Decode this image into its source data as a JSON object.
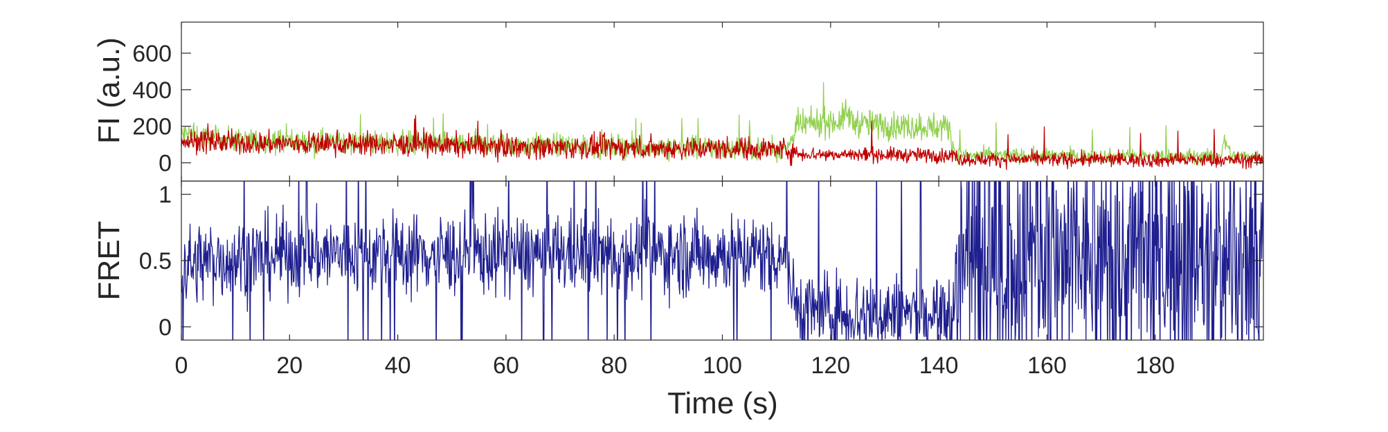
{
  "chart_data": [
    {
      "type": "line",
      "panel": "top",
      "ylabel": "FI (a.u.)",
      "xlim": [
        0,
        200
      ],
      "ylim": [
        -100,
        770
      ],
      "yticks": [
        0,
        200,
        400,
        600
      ],
      "grid": false,
      "series": [
        {
          "color": "#92D050",
          "x": [
            0,
            2,
            4,
            6,
            8,
            10,
            14,
            18,
            22,
            26,
            30,
            34,
            38,
            42,
            46,
            50,
            54,
            58,
            62,
            66,
            70,
            74,
            78,
            82,
            86,
            90,
            94,
            98,
            102,
            106,
            110,
            112,
            113,
            114,
            116,
            118,
            120,
            122,
            123,
            124,
            126,
            128,
            130,
            132,
            134,
            136,
            138,
            140,
            142,
            143,
            144,
            146,
            148,
            150,
            154,
            158,
            162,
            166,
            170,
            174,
            178,
            182,
            186,
            190,
            192,
            193,
            194,
            196,
            198,
            200
          ],
          "y": [
            155,
            150,
            140,
            135,
            130,
            125,
            120,
            120,
            115,
            115,
            115,
            110,
            110,
            110,
            105,
            105,
            100,
            100,
            95,
            95,
            95,
            90,
            90,
            90,
            85,
            85,
            85,
            80,
            80,
            80,
            75,
            75,
            150,
            200,
            210,
            220,
            225,
            230,
            280,
            225,
            215,
            210,
            205,
            205,
            200,
            200,
            200,
            195,
            195,
            50,
            45,
            40,
            40,
            40,
            40,
            38,
            38,
            36,
            36,
            35,
            35,
            35,
            35,
            35,
            35,
            120,
            40,
            35,
            35,
            35
          ]
        },
        {
          "color": "#C00000",
          "x": [
            0,
            5,
            10,
            20,
            30,
            40,
            50,
            60,
            70,
            80,
            90,
            100,
            110,
            112,
            113,
            114,
            120,
            130,
            140,
            142,
            143,
            144,
            150,
            160,
            170,
            180,
            190,
            200
          ],
          "y": [
            120,
            115,
            110,
            105,
            105,
            100,
            95,
            90,
            85,
            85,
            80,
            80,
            75,
            75,
            60,
            50,
            45,
            45,
            40,
            40,
            40,
            20,
            20,
            18,
            18,
            15,
            15,
            15
          ]
        }
      ]
    },
    {
      "type": "line",
      "panel": "bottom",
      "xlabel": "Time (s)",
      "ylabel": "FRET",
      "xlim": [
        0,
        200
      ],
      "ylim": [
        -0.1,
        1.1
      ],
      "yticks": [
        0,
        0.5,
        1
      ],
      "xticks": [
        0,
        20,
        40,
        60,
        80,
        100,
        120,
        140,
        160,
        180
      ],
      "grid": false,
      "series": [
        {
          "color": "#1F1F8F",
          "x": [
            0,
            5,
            10,
            20,
            30,
            40,
            50,
            60,
            70,
            80,
            90,
            100,
            110,
            112,
            113,
            114,
            120,
            130,
            140,
            142,
            143,
            144,
            150,
            160,
            170,
            180,
            190,
            200
          ],
          "y": [
            0.45,
            0.5,
            0.52,
            0.55,
            0.55,
            0.55,
            0.55,
            0.55,
            0.55,
            0.55,
            0.55,
            0.55,
            0.55,
            0.55,
            0.2,
            0.15,
            0.1,
            0.1,
            0.1,
            0.1,
            0.1,
            0.5,
            0.5,
            0.5,
            0.5,
            0.5,
            0.5,
            0.5
          ]
        }
      ]
    }
  ]
}
